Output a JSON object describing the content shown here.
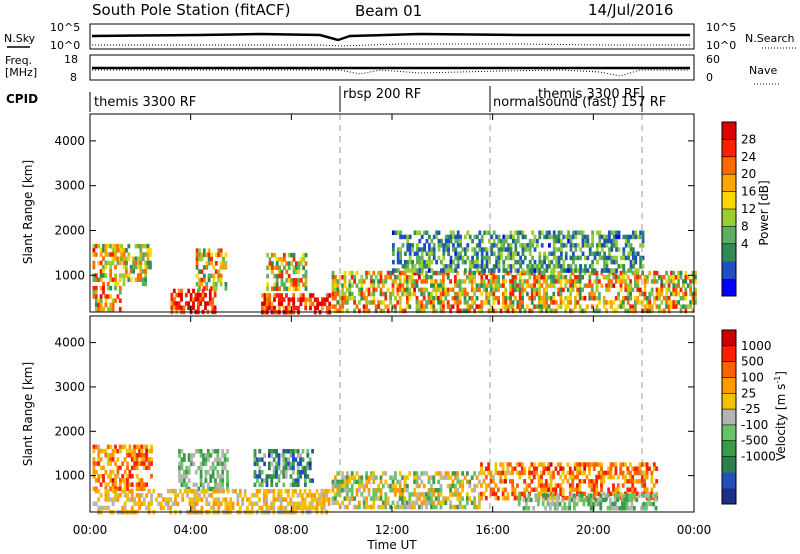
{
  "header": {
    "station": "South Pole Station (fitACF)",
    "beam": "Beam 01",
    "date": "14/Jul/2016"
  },
  "noise_panel": {
    "left_label": "N.Sky",
    "left_ticks": [
      "10^5",
      "10^0"
    ],
    "right_label": "N.Search",
    "right_ticks": [
      "10^5",
      "10^0"
    ]
  },
  "freq_panel": {
    "left_label_line1": "Freq.",
    "left_label_line2": "[MHz]",
    "left_ticks": [
      "18",
      "8"
    ],
    "right_label": "Nave",
    "right_ticks": [
      "60",
      "0"
    ]
  },
  "cpid": {
    "label": "CPID",
    "segments": [
      {
        "start_hour": 0,
        "text": "themis 3300 RF"
      },
      {
        "start_hour": 10,
        "text": "rbsp 200 RF"
      },
      {
        "start_hour": 16,
        "text": "normalsound (fast) 157 RF"
      },
      {
        "start_hour": 22,
        "text": "themis 3300 RF"
      }
    ]
  },
  "x_axis": {
    "label": "Time UT",
    "ticks": [
      "00:00",
      "04:00",
      "08:00",
      "12:00",
      "16:00",
      "20:00",
      "00:00"
    ]
  },
  "y_axis": {
    "label": "Slant Range [km]",
    "ticks": [
      "1000",
      "2000",
      "3000",
      "4000"
    ]
  },
  "power_scale": {
    "label": "Power [dB]",
    "ticks": [
      "28",
      "24",
      "20",
      "16",
      "12",
      "8",
      "4"
    ],
    "colors": [
      "#0000ff",
      "#2050c0",
      "#2e8b57",
      "#5fae5f",
      "#9acd32",
      "#ffd700",
      "#ffa500",
      "#ff6a00",
      "#ff2000",
      "#dd0000"
    ]
  },
  "velocity_scale": {
    "label": "Velocity [m s",
    "label_sup": "-1",
    "label_end": "]",
    "ticks": [
      "1000",
      "500",
      "100",
      "25",
      "-25",
      "-100",
      "-500",
      "-1000"
    ],
    "colors": [
      "#1a2c8c",
      "#2050b8",
      "#2e7d4f",
      "#3a9a4a",
      "#66c466",
      "#b4b4b4",
      "#f2c200",
      "#ff9a00",
      "#ff6000",
      "#ff2000",
      "#d00000"
    ]
  },
  "chart_data": {
    "type": "heatmap",
    "title": "South Pole Station (fitACF)",
    "xlabel": "Time UT",
    "ylabel": "Slant Range [km]",
    "xlim": [
      0,
      24
    ],
    "ylim": [
      180,
      4600
    ],
    "grid": false,
    "panels": [
      {
        "name": "Power",
        "unit": "dB",
        "scale_ticks": [
          4,
          8,
          12,
          16,
          20,
          24,
          28
        ],
        "regions": [
          {
            "t_start": 0.1,
            "t_end": 1.2,
            "r_start": 200,
            "r_end": 1700,
            "value_min": 8,
            "value_max": 28
          },
          {
            "t_start": 1.2,
            "t_end": 2.4,
            "r_start": 800,
            "r_end": 1700,
            "value_min": 8,
            "value_max": 24
          },
          {
            "t_start": 3.2,
            "t_end": 5.0,
            "r_start": 200,
            "r_end": 700,
            "value_min": 20,
            "value_max": 32
          },
          {
            "t_start": 4.2,
            "t_end": 5.4,
            "r_start": 700,
            "r_end": 1600,
            "value_min": 8,
            "value_max": 28
          },
          {
            "t_start": 6.8,
            "t_end": 9.5,
            "r_start": 200,
            "r_end": 600,
            "value_min": 20,
            "value_max": 32
          },
          {
            "t_start": 7.0,
            "t_end": 8.6,
            "r_start": 700,
            "r_end": 1500,
            "value_min": 8,
            "value_max": 28
          },
          {
            "t_start": 9.6,
            "t_end": 24.0,
            "r_start": 250,
            "r_end": 1100,
            "value_min": 8,
            "value_max": 28
          },
          {
            "t_start": 12.0,
            "t_end": 22.0,
            "r_start": 1100,
            "r_end": 2000,
            "value_min": 4,
            "value_max": 16
          }
        ]
      },
      {
        "name": "Velocity",
        "unit": "m s-1",
        "scale_ticks": [
          -1000,
          -500,
          -100,
          -25,
          25,
          100,
          500,
          1000
        ],
        "regions": [
          {
            "t_start": 0.1,
            "t_end": 2.4,
            "r_start": 700,
            "r_end": 1700,
            "value_min": 100,
            "value_max": 1000
          },
          {
            "t_start": 3.5,
            "t_end": 5.5,
            "r_start": 700,
            "r_end": 1600,
            "value_min": -500,
            "value_max": 100
          },
          {
            "t_start": 6.5,
            "t_end": 8.8,
            "r_start": 800,
            "r_end": 1600,
            "value_min": -1000,
            "value_max": 100
          },
          {
            "t_start": 0.1,
            "t_end": 9.5,
            "r_start": 200,
            "r_end": 700,
            "value_min": -25,
            "value_max": 500
          },
          {
            "t_start": 9.6,
            "t_end": 15.5,
            "r_start": 250,
            "r_end": 1100,
            "value_min": -500,
            "value_max": 500
          },
          {
            "t_start": 15.5,
            "t_end": 22.5,
            "r_start": 500,
            "r_end": 1300,
            "value_min": 100,
            "value_max": 1000
          },
          {
            "t_start": 17.0,
            "t_end": 22.5,
            "r_start": 250,
            "r_end": 600,
            "value_min": -500,
            "value_max": 100
          }
        ]
      }
    ]
  }
}
